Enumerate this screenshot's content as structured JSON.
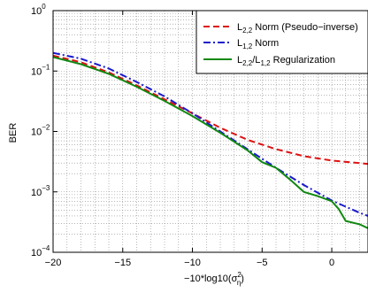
{
  "chart_data": {
    "type": "line",
    "xlabel_parts": {
      "base": "−10*log10(σ",
      "sup": "2",
      "sub": "η",
      "close": ")"
    },
    "ylabel": "BER",
    "xlim": [
      -20,
      2.6
    ],
    "ylim": [
      0.0001,
      1
    ],
    "y_scale": "log",
    "grid": true,
    "legend_position": "top-right",
    "x_ticks": [
      {
        "value": -20,
        "label": "−20"
      },
      {
        "value": -15,
        "label": "−15"
      },
      {
        "value": -10,
        "label": "−10"
      },
      {
        "value": -5,
        "label": "−5"
      },
      {
        "value": 0,
        "label": "0"
      }
    ],
    "y_ticks": [
      {
        "value": 1,
        "base": "10",
        "exp": "0"
      },
      {
        "value": 0.1,
        "base": "10",
        "exp": "−1"
      },
      {
        "value": 0.01,
        "base": "10",
        "exp": "−2"
      },
      {
        "value": 0.001,
        "base": "10",
        "exp": "−3"
      },
      {
        "value": 0.0001,
        "base": "10",
        "exp": "−4"
      }
    ],
    "series": [
      {
        "legend": {
          "pre": "L",
          "sub": "2,2",
          "post": " Norm (Pseudo−inverse)"
        },
        "color": "#dd1111",
        "dash": "7,4",
        "x": [
          -20,
          -18,
          -16,
          -14,
          -12,
          -10,
          -8,
          -6,
          -4,
          -2,
          0,
          2,
          2.6
        ],
        "y": [
          0.18,
          0.14,
          0.095,
          0.058,
          0.034,
          0.02,
          0.0115,
          0.0072,
          0.0051,
          0.0039,
          0.0033,
          0.003,
          0.0029
        ]
      },
      {
        "legend": {
          "pre": "L",
          "sub": "1,2",
          "post": " Norm"
        },
        "color": "#1a1acc",
        "dash": "8,3,2,3",
        "x": [
          -20,
          -18,
          -16,
          -14,
          -12,
          -10,
          -8,
          -6,
          -4,
          -2,
          0,
          2,
          2.6
        ],
        "y": [
          0.2,
          0.16,
          0.11,
          0.066,
          0.038,
          0.02,
          0.01,
          0.005,
          0.0025,
          0.0013,
          0.00072,
          0.00045,
          0.0004
        ]
      },
      {
        "legend": {
          "pre": "L",
          "sub": "2,2",
          "post": "/L",
          "sub2": "1,2",
          "post2": " Regularization"
        },
        "color": "#118811",
        "dash": "",
        "x": [
          -20,
          -18,
          -16,
          -14,
          -12,
          -10,
          -8,
          -6,
          -5,
          -4,
          -3,
          -2,
          -1,
          0,
          0.5,
          1,
          2,
          2.6
        ],
        "y": [
          0.17,
          0.13,
          0.09,
          0.055,
          0.032,
          0.018,
          0.0095,
          0.0048,
          0.0031,
          0.0025,
          0.0016,
          0.001,
          0.00085,
          0.0007,
          0.00052,
          0.00033,
          0.00029,
          0.00025
        ]
      }
    ]
  }
}
